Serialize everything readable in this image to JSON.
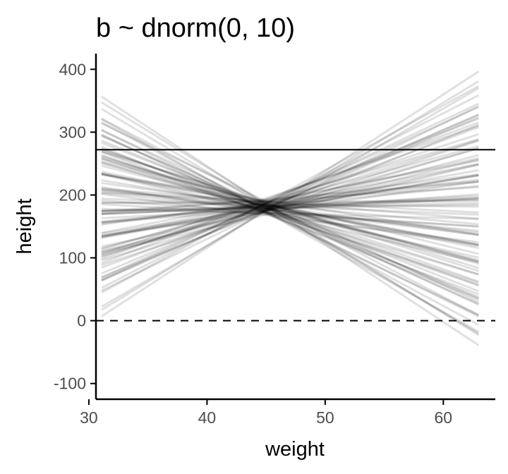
{
  "chart_data": {
    "type": "line",
    "title": "b ~ dnorm(0, 10)",
    "xlabel": "weight",
    "ylabel": "height",
    "xlim": [
      30.6,
      64.4
    ],
    "ylim": [
      -125,
      425
    ],
    "x_ticks": [
      30,
      40,
      50,
      60
    ],
    "y_ticks": [
      -100,
      0,
      100,
      200,
      300,
      400
    ],
    "x_tick_labels": [
      "30",
      "40",
      "50",
      "60"
    ],
    "y_tick_labels": [
      "-100",
      "0",
      "100",
      "200",
      "300",
      "400"
    ],
    "grid": false,
    "legend": "none",
    "reference_lines": [
      {
        "y": 0,
        "style": "dashed",
        "color": "#000000"
      },
      {
        "y": 272,
        "style": "solid",
        "color": "#000000"
      }
    ],
    "prior_lines": {
      "x_range": [
        31.07,
        62.99
      ],
      "x_center": 45,
      "count": 100,
      "color": "#000000",
      "opacity": 0.12,
      "intercepts": [
        178,
        185,
        172,
        190,
        181,
        176,
        168,
        193,
        183,
        179,
        174,
        187,
        170,
        195,
        180,
        177,
        184,
        173,
        189,
        182,
        175,
        186,
        171,
        192,
        179,
        183,
        176,
        188,
        172,
        185,
        181,
        174,
        190,
        178,
        186,
        169,
        184,
        180,
        177,
        191,
        173,
        187,
        182,
        175,
        179,
        188,
        171,
        183,
        185,
        176,
        180,
        193,
        174,
        186,
        178,
        182,
        170,
        189,
        184,
        177,
        181,
        175,
        187,
        179,
        172,
        190,
        183,
        176,
        185,
        180,
        173,
        188,
        178,
        182,
        186,
        174,
        191,
        179,
        184,
        177,
        171,
        187,
        181,
        175,
        189,
        183,
        178,
        185,
        173,
        180,
        186,
        176,
        182,
        179,
        188,
        174,
        184,
        177,
        190,
        181
      ],
      "slopes": [
        -8.4,
        7.9,
        -6.2,
        5.5,
        -4.7,
        3.1,
        -2.4,
        1.6,
        -0.8,
        0.3,
        -9.3,
        8.8,
        -7.1,
        6.4,
        -5.9,
        4.8,
        -3.5,
        2.7,
        -1.5,
        0.9,
        -10.1,
        9.6,
        -7.6,
        7.2,
        -6.8,
        5.8,
        -4.2,
        3.9,
        -2.9,
        2.2,
        -11.2,
        10.9,
        -8.9,
        8.1,
        -5.1,
        4.4,
        -3.8,
        3.3,
        -1.9,
        1.2,
        -6.5,
        6.1,
        -4.9,
        4.1,
        -3.2,
        2.5,
        -0.5,
        0.6,
        -9.8,
        9.2,
        -7.4,
        6.8,
        -5.6,
        5.1,
        -2.1,
        1.8,
        -1.1,
        0.1,
        -12.4,
        12.2,
        -8.1,
        7.6,
        -6.0,
        5.3,
        -4.4,
        3.6,
        -2.6,
        1.4,
        -0.2,
        0.7,
        -10.6,
        10.3,
        -7.8,
        7.0,
        -5.3,
        4.6,
        -3.0,
        2.9,
        -1.7,
        1.0,
        -9.0,
        8.5,
        -6.6,
        6.2,
        -4.6,
        3.7,
        -2.3,
        2.0,
        -1.3,
        0.4,
        -11.6,
        11.4,
        -8.7,
        8.3,
        -5.8,
        5.6,
        -3.6,
        3.0,
        -1.0,
        0.8
      ]
    }
  }
}
